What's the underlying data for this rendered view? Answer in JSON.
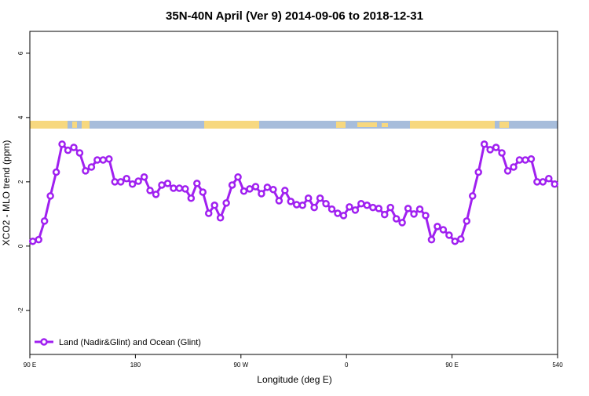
{
  "chart_data": {
    "type": "line",
    "title": "35N-40N April (Ver 9)   2014-09-06 to 2018-12-31",
    "xlabel": "Longitude (deg E)",
    "ylabel": "XCO2 - MLO trend (ppm)",
    "x": [
      92.5,
      97.5,
      102.5,
      107.5,
      112.5,
      117.5,
      122.5,
      127.5,
      132.5,
      137.5,
      142.5,
      147.5,
      152.5,
      157.5,
      162.5,
      167.5,
      172.5,
      177.5,
      182.5,
      187.5,
      192.5,
      197.5,
      202.5,
      207.5,
      212.5,
      217.5,
      222.5,
      227.5,
      232.5,
      237.5,
      242.5,
      247.5,
      252.5,
      257.5,
      262.5,
      267.5,
      272.5,
      277.5,
      282.5,
      287.5,
      292.5,
      297.5,
      302.5,
      307.5,
      312.5,
      317.5,
      322.5,
      327.5,
      332.5,
      337.5,
      342.5,
      347.5,
      352.5,
      357.5,
      362.5,
      367.5,
      372.5,
      377.5,
      382.5,
      387.5,
      392.5,
      397.5,
      402.5,
      407.5,
      412.5,
      417.5,
      422.5,
      427.5,
      432.5,
      437.5,
      442.5,
      447.5,
      452.5,
      457.5,
      462.5,
      467.5,
      472.5,
      477.5,
      482.5,
      487.5,
      492.5,
      497.5,
      502.5,
      507.5,
      512.5,
      517.5,
      522.5,
      527.5,
      532.5,
      537.5
    ],
    "series": [
      {
        "name": "Land (Nadir&Glint) and Ocean (Glint)",
        "color": "#a020f0",
        "values": [
          0.15,
          0.2,
          0.78,
          1.56,
          2.3,
          3.17,
          2.98,
          3.07,
          2.9,
          2.34,
          2.46,
          2.68,
          2.68,
          2.71,
          2.0,
          2.0,
          2.1,
          1.93,
          2.02,
          2.15,
          1.73,
          1.61,
          1.9,
          1.95,
          1.8,
          1.8,
          1.78,
          1.49,
          1.95,
          1.68,
          1.02,
          1.27,
          0.88,
          1.34,
          1.9,
          2.15,
          1.71,
          1.78,
          1.85,
          1.63,
          1.83,
          1.76,
          1.41,
          1.73,
          1.39,
          1.29,
          1.27,
          1.49,
          1.2,
          1.49,
          1.32,
          1.15,
          1.02,
          0.95,
          1.22,
          1.12,
          1.32,
          1.27,
          1.2,
          1.17,
          0.98,
          1.2,
          0.85,
          0.73,
          1.17,
          1.0,
          1.15,
          0.95,
          0.2,
          0.61,
          0.51,
          0.34,
          0.15,
          0.22,
          0.78,
          1.56,
          2.3,
          3.17,
          3.0,
          3.07,
          2.9,
          2.34,
          2.46,
          2.68,
          2.68,
          2.71,
          2.0,
          2.0,
          2.1,
          1.93
        ]
      }
    ],
    "xlim": [
      90,
      540
    ],
    "xticks": [
      {
        "value": 90,
        "label": "90 E"
      },
      180,
      {
        "value": 270,
        "label": "90 W"
      },
      {
        "value": 360,
        "label": "0"
      },
      {
        "value": 450,
        "label": "90 E"
      },
      540
    ],
    "ylim": [
      -3.37,
      6.68
    ],
    "yticks": [
      -2,
      0,
      2,
      4,
      6
    ],
    "legend": "bottom-left"
  }
}
